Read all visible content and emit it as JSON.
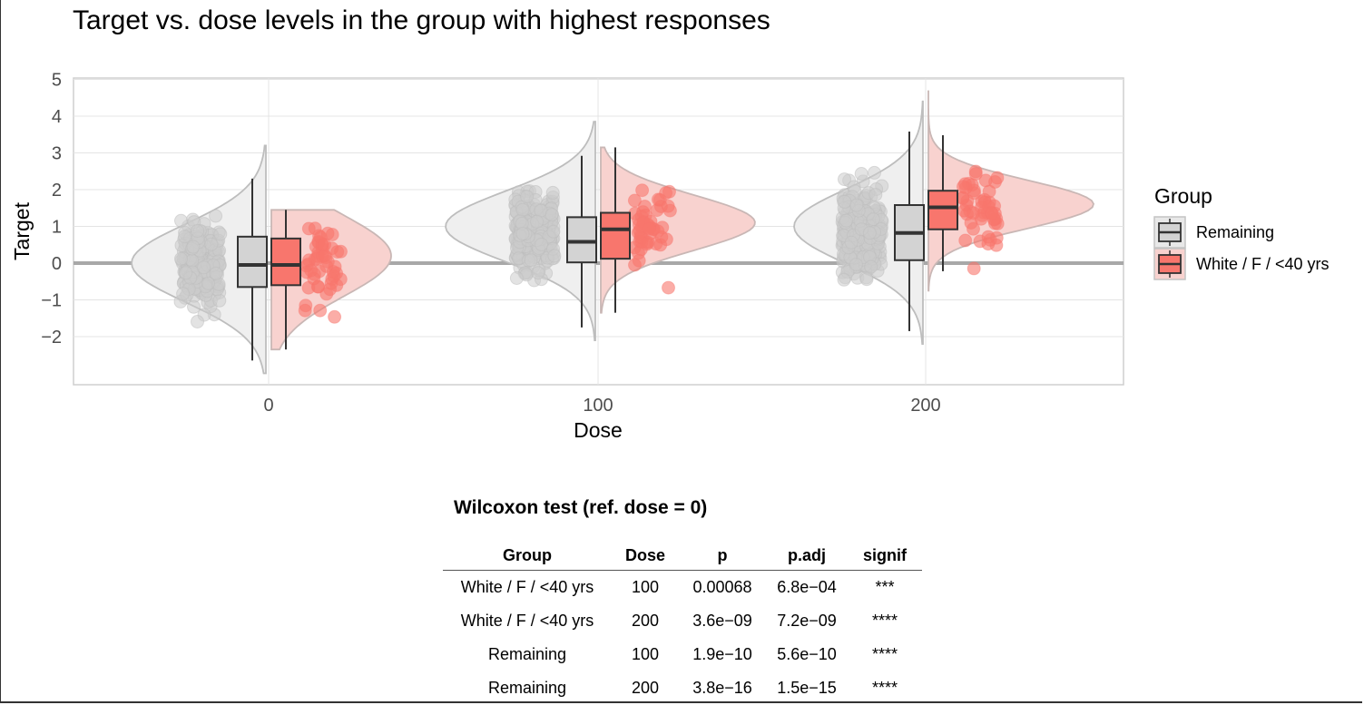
{
  "chart_data": {
    "type": "raincloud",
    "title": "Target vs. dose levels in the group with highest responses",
    "xlabel": "Dose",
    "ylabel": "Target",
    "x_categories": [
      "0",
      "100",
      "200"
    ],
    "y_ticks": [
      "5",
      "4",
      "3",
      "2",
      "1",
      "0",
      "−1",
      "−2"
    ],
    "ylim": [
      -3.1,
      5.1
    ],
    "reference_line_y": 0,
    "grid": true,
    "legend": {
      "title": "Group",
      "position": "right",
      "entries": [
        "Remaining",
        "White / F / <40 yrs"
      ]
    },
    "series": [
      {
        "name": "Remaining",
        "color": "#d3d3d3",
        "box": [
          {
            "dose": "0",
            "min": -2.65,
            "q1": -0.65,
            "median": -0.05,
            "q3": 0.72,
            "max": 2.3
          },
          {
            "dose": "100",
            "min": -1.75,
            "q1": 0.02,
            "median": 0.58,
            "q3": 1.25,
            "max": 2.92
          },
          {
            "dose": "200",
            "min": -1.85,
            "q1": 0.08,
            "median": 0.82,
            "q3": 1.58,
            "max": 3.58
          }
        ],
        "violin_range": [
          {
            "dose": "0",
            "min": -3.0,
            "max": 3.2
          },
          {
            "dose": "100",
            "min": -2.1,
            "max": 3.85
          },
          {
            "dose": "200",
            "min": -2.2,
            "max": 4.4
          }
        ]
      },
      {
        "name": "White / F / <40 yrs",
        "color": "#f8766d",
        "box": [
          {
            "dose": "0",
            "min": -2.35,
            "q1": -0.6,
            "median": -0.05,
            "q3": 0.67,
            "max": 1.45
          },
          {
            "dose": "100",
            "min": -1.35,
            "q1": 0.12,
            "median": 0.92,
            "q3": 1.37,
            "max": 3.15
          },
          {
            "dose": "200",
            "min": -0.22,
            "q1": 0.92,
            "median": 1.52,
            "q3": 1.97,
            "max": 3.48
          }
        ],
        "violin_range": [
          {
            "dose": "0",
            "min": -2.35,
            "max": 1.45
          },
          {
            "dose": "100",
            "min": -1.35,
            "max": 3.15
          },
          {
            "dose": "200",
            "min": -0.75,
            "max": 4.7
          }
        ]
      }
    ]
  },
  "table": {
    "title": "Wilcoxon test (ref. dose = 0)",
    "columns": [
      "Group",
      "Dose",
      "p",
      "p.adj",
      "signif"
    ],
    "rows": [
      [
        "White / F / <40 yrs",
        "100",
        "0.00068",
        "6.8e−04",
        "***"
      ],
      [
        "White / F / <40 yrs",
        "200",
        "3.6e−09",
        "7.2e−09",
        "****"
      ],
      [
        "Remaining",
        "100",
        "1.9e−10",
        "5.6e−10",
        "****"
      ],
      [
        "Remaining",
        "200",
        "3.8e−16",
        "1.5e−15",
        "****"
      ]
    ]
  }
}
